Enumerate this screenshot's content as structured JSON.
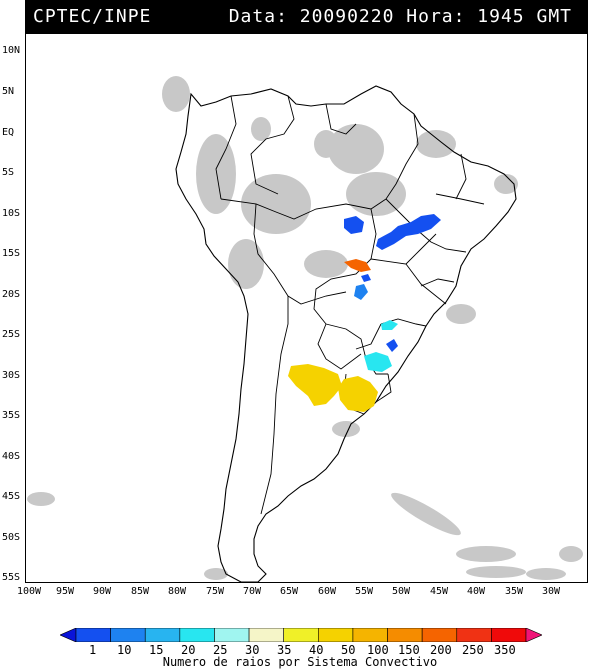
{
  "header": {
    "source": "CPTEC/INPE",
    "datetime": "Data: 20090220 Hora: 1945 GMT"
  },
  "axes": {
    "latitudes": [
      "10N",
      "5N",
      "EQ",
      "5S",
      "10S",
      "15S",
      "20S",
      "25S",
      "30S",
      "35S",
      "40S",
      "45S",
      "50S",
      "55S"
    ],
    "longitudes": [
      "100W",
      "95W",
      "90W",
      "85W",
      "80W",
      "75W",
      "70W",
      "65W",
      "60W",
      "55W",
      "50W",
      "45W",
      "40W",
      "35W",
      "30W"
    ]
  },
  "legend": {
    "caption": "Numero de raios por Sistema Convectivo",
    "ticks": [
      "1",
      "10",
      "15",
      "20",
      "25",
      "30",
      "35",
      "40",
      "50",
      "100",
      "150",
      "200",
      "250",
      "350"
    ],
    "colors": [
      "#0a14d8",
      "#1450f0",
      "#1e82f0",
      "#28b4f0",
      "#28e6f0",
      "#a0f5f0",
      "#f5f5c8",
      "#f0f028",
      "#f5d200",
      "#f5b400",
      "#f58c00",
      "#f56400",
      "#f03214",
      "#f00a0a",
      "#f01478"
    ]
  },
  "features": {
    "land": "South America outline with country borders",
    "cloud_color": "#c8c8c8"
  }
}
